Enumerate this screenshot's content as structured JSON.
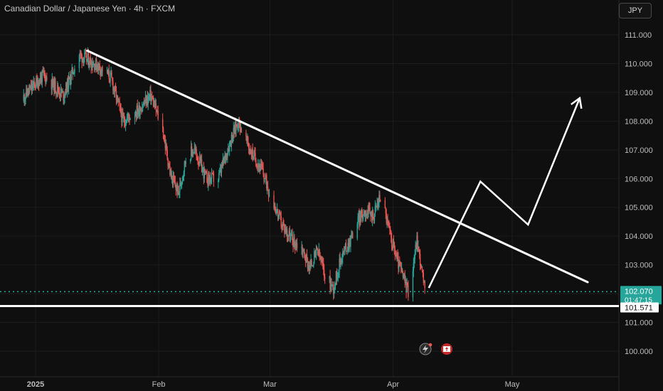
{
  "title": "Canadian Dollar / Japanese Yen · 4h · FXCM",
  "currency_button": "JPY",
  "colors": {
    "background": "#0f0f0f",
    "grid": "#1c1c1c",
    "bull": "#26a69a",
    "bear": "#ef5350",
    "annotation": "#ffffff",
    "price_dots": "#26a69a"
  },
  "chart_data": {
    "type": "candlestick",
    "symbol": "CADJPY",
    "interval": "4h",
    "y_axis": {
      "min": 99.5,
      "max": 111.5,
      "ticks": [
        "111.000",
        "110.000",
        "109.000",
        "108.000",
        "107.000",
        "106.000",
        "105.000",
        "104.000",
        "103.000",
        "102.000",
        "101.000",
        "100.000"
      ]
    },
    "x_axis": {
      "labels": [
        "2025",
        "Feb",
        "Mar",
        "Apr",
        "May"
      ],
      "dates": [
        "2025-01-01",
        "2025-02-01",
        "2025-03-01",
        "2025-04-01",
        "2025-05-01"
      ],
      "range": [
        "2024-12-28",
        "2025-05-20"
      ]
    },
    "price_path": [
      {
        "date": "2024-12-28",
        "price": 108.7
      },
      {
        "date": "2025-01-03",
        "price": 109.6
      },
      {
        "date": "2025-01-08",
        "price": 108.9
      },
      {
        "date": "2025-01-12",
        "price": 110.3
      },
      {
        "date": "2025-01-17",
        "price": 109.9
      },
      {
        "date": "2025-01-20",
        "price": 109.5
      },
      {
        "date": "2025-01-23",
        "price": 108.0
      },
      {
        "date": "2025-01-27",
        "price": 108.4
      },
      {
        "date": "2025-01-30",
        "price": 108.9
      },
      {
        "date": "2025-02-02",
        "price": 107.7
      },
      {
        "date": "2025-02-04",
        "price": 106.1
      },
      {
        "date": "2025-02-06",
        "price": 105.5
      },
      {
        "date": "2025-02-08",
        "price": 106.8
      },
      {
        "date": "2025-02-10",
        "price": 107.0
      },
      {
        "date": "2025-02-13",
        "price": 106.0
      },
      {
        "date": "2025-02-16",
        "price": 106.0
      },
      {
        "date": "2025-02-19",
        "price": 107.3
      },
      {
        "date": "2025-02-21",
        "price": 108.0
      },
      {
        "date": "2025-02-24",
        "price": 107.0
      },
      {
        "date": "2025-02-27",
        "price": 106.3
      },
      {
        "date": "2025-03-01",
        "price": 105.5
      },
      {
        "date": "2025-03-04",
        "price": 104.4
      },
      {
        "date": "2025-03-07",
        "price": 103.8
      },
      {
        "date": "2025-03-09",
        "price": 103.6
      },
      {
        "date": "2025-03-11",
        "price": 102.9
      },
      {
        "date": "2025-03-13",
        "price": 103.5
      },
      {
        "date": "2025-03-15",
        "price": 102.6
      },
      {
        "date": "2025-03-17",
        "price": 102.2
      },
      {
        "date": "2025-03-19",
        "price": 103.3
      },
      {
        "date": "2025-03-21",
        "price": 103.8
      },
      {
        "date": "2025-03-23",
        "price": 104.5
      },
      {
        "date": "2025-03-25",
        "price": 104.9
      },
      {
        "date": "2025-03-27",
        "price": 104.7
      },
      {
        "date": "2025-03-29",
        "price": 105.5
      },
      {
        "date": "2025-03-31",
        "price": 104.2
      },
      {
        "date": "2025-04-02",
        "price": 103.2
      },
      {
        "date": "2025-04-05",
        "price": 102.0
      },
      {
        "date": "2025-04-07",
        "price": 103.9
      },
      {
        "date": "2025-04-09",
        "price": 102.1
      }
    ],
    "annotations": {
      "trendline": {
        "start": {
          "date": "2025-01-14",
          "price": 110.45
        },
        "end": {
          "date": "2025-05-20",
          "price": 102.4
        }
      },
      "support_line": {
        "price": 101.571,
        "label": "101.571"
      },
      "projection_path": [
        {
          "date": "2025-04-10",
          "price": 102.2
        },
        {
          "date": "2025-04-23",
          "price": 105.9
        },
        {
          "date": "2025-05-05",
          "price": 104.4
        },
        {
          "date": "2025-05-18",
          "price": 108.8
        }
      ]
    },
    "last_price": {
      "value": 102.07,
      "label": "102.070",
      "countdown": "01:47:15"
    }
  }
}
